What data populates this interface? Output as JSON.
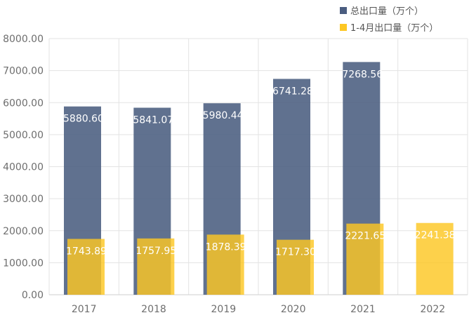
{
  "chart_data": {
    "type": "bar",
    "categories": [
      "2017",
      "2018",
      "2019",
      "2020",
      "2021",
      "2022"
    ],
    "series": [
      {
        "name": "总出口量（万个）",
        "color": "#4a5d80",
        "values": [
          5880.6,
          5841.07,
          5980.44,
          6741.28,
          7268.56,
          null
        ],
        "labels": [
          "5880.60",
          "5841.07",
          "5980.44",
          "6741.28",
          "7268.56",
          ""
        ]
      },
      {
        "name": "1-4月出口量（万个）",
        "color": "#fdc723",
        "values": [
          1743.89,
          1757.95,
          1878.39,
          1717.3,
          2221.65,
          2241.38
        ],
        "labels": [
          "1743.89",
          "1757.95",
          "1878.39",
          "1717.30",
          "2221.65",
          "2241.38"
        ]
      }
    ],
    "ylim": [
      0,
      8000
    ],
    "yticks": [
      "0.00",
      "1000.00",
      "2000.00",
      "3000.00",
      "4000.00",
      "5000.00",
      "6000.00",
      "7000.00",
      "8000.00"
    ],
    "ytick_values": [
      0,
      1000,
      2000,
      3000,
      4000,
      5000,
      6000,
      7000,
      8000
    ],
    "grid": true,
    "legend_position": "top-right"
  }
}
